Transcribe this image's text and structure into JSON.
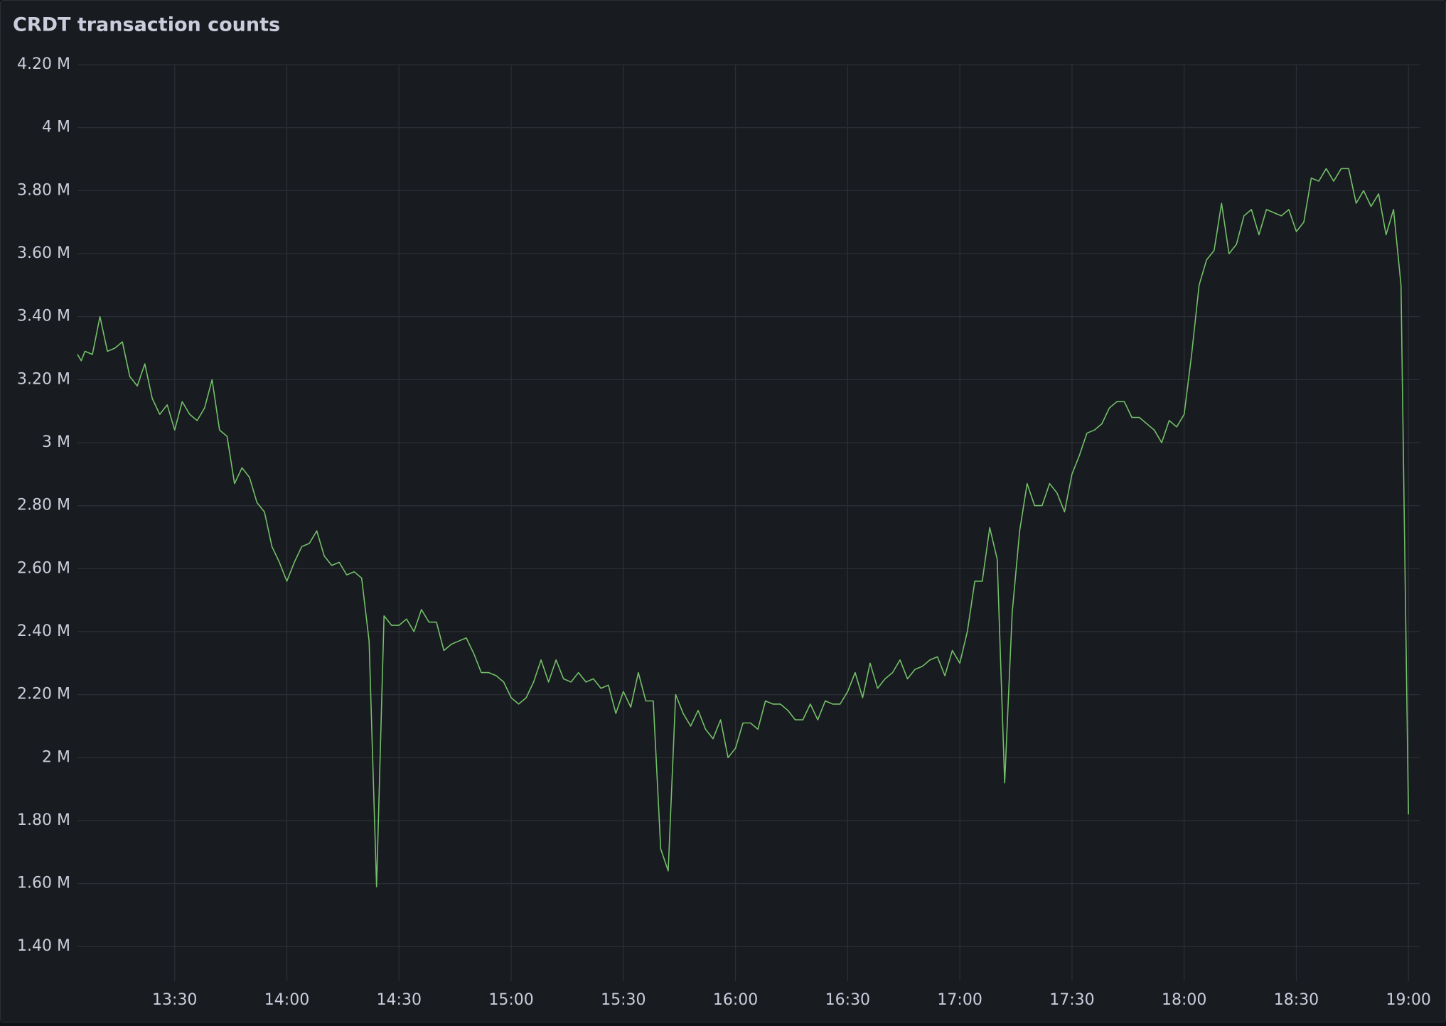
{
  "chart_data": {
    "type": "line",
    "title": "CRDT transaction counts",
    "x": [
      "13:04",
      "13:05",
      "13:06",
      "13:08",
      "13:10",
      "13:12",
      "13:14",
      "13:16",
      "13:18",
      "13:20",
      "13:22",
      "13:24",
      "13:26",
      "13:28",
      "13:30",
      "13:32",
      "13:34",
      "13:36",
      "13:38",
      "13:40",
      "13:42",
      "13:44",
      "13:46",
      "13:48",
      "13:50",
      "13:52",
      "13:54",
      "13:56",
      "13:58",
      "14:00",
      "14:02",
      "14:04",
      "14:06",
      "14:08",
      "14:10",
      "14:12",
      "14:14",
      "14:16",
      "14:18",
      "14:20",
      "14:22",
      "14:24",
      "14:26",
      "14:28",
      "14:30",
      "14:32",
      "14:34",
      "14:36",
      "14:38",
      "14:40",
      "14:42",
      "14:44",
      "14:46",
      "14:48",
      "14:50",
      "14:52",
      "14:54",
      "14:56",
      "14:58",
      "15:00",
      "15:02",
      "15:04",
      "15:06",
      "15:08",
      "15:10",
      "15:12",
      "15:14",
      "15:16",
      "15:18",
      "15:20",
      "15:22",
      "15:24",
      "15:26",
      "15:28",
      "15:30",
      "15:32",
      "15:34",
      "15:36",
      "15:38",
      "15:40",
      "15:42",
      "15:44",
      "15:46",
      "15:48",
      "15:50",
      "15:52",
      "15:54",
      "15:56",
      "15:58",
      "16:00",
      "16:02",
      "16:04",
      "16:06",
      "16:08",
      "16:10",
      "16:12",
      "16:14",
      "16:16",
      "16:18",
      "16:20",
      "16:22",
      "16:24",
      "16:26",
      "16:28",
      "16:30",
      "16:32",
      "16:34",
      "16:36",
      "16:38",
      "16:40",
      "16:42",
      "16:44",
      "16:46",
      "16:48",
      "16:50",
      "16:52",
      "16:54",
      "16:56",
      "16:58",
      "17:00",
      "17:02",
      "17:04",
      "17:06",
      "17:08",
      "17:10",
      "17:12",
      "17:14",
      "17:16",
      "17:18",
      "17:20",
      "17:22",
      "17:24",
      "17:26",
      "17:28",
      "17:30",
      "17:32",
      "17:34",
      "17:36",
      "17:38",
      "17:40",
      "17:42",
      "17:44",
      "17:46",
      "17:48",
      "17:50",
      "17:52",
      "17:54",
      "17:56",
      "17:58",
      "18:00",
      "18:02",
      "18:04",
      "18:06",
      "18:08",
      "18:10",
      "18:12",
      "18:14",
      "18:16",
      "18:18",
      "18:20",
      "18:22",
      "18:24",
      "18:26",
      "18:28",
      "18:30",
      "18:32",
      "18:34",
      "18:36",
      "18:38",
      "18:40",
      "18:42",
      "18:44",
      "18:46",
      "18:48",
      "18:50",
      "18:52",
      "18:54",
      "18:56",
      "18:58",
      "19:00"
    ],
    "series": [
      {
        "name": "CRDT transaction counts",
        "color": "#73bf69",
        "values": [
          3280000,
          3260000,
          3290000,
          3280000,
          3400000,
          3290000,
          3300000,
          3320000,
          3210000,
          3180000,
          3250000,
          3140000,
          3090000,
          3120000,
          3040000,
          3130000,
          3090000,
          3070000,
          3110000,
          3200000,
          3040000,
          3020000,
          2870000,
          2920000,
          2890000,
          2810000,
          2780000,
          2670000,
          2620000,
          2560000,
          2620000,
          2670000,
          2680000,
          2720000,
          2640000,
          2610000,
          2620000,
          2580000,
          2590000,
          2570000,
          2370000,
          1590000,
          2450000,
          2420000,
          2420000,
          2440000,
          2400000,
          2470000,
          2430000,
          2430000,
          2340000,
          2360000,
          2370000,
          2380000,
          2330000,
          2270000,
          2270000,
          2260000,
          2240000,
          2190000,
          2170000,
          2190000,
          2240000,
          2310000,
          2240000,
          2310000,
          2250000,
          2240000,
          2270000,
          2240000,
          2250000,
          2220000,
          2230000,
          2140000,
          2210000,
          2160000,
          2270000,
          2180000,
          2180000,
          1710000,
          1640000,
          2200000,
          2140000,
          2100000,
          2150000,
          2090000,
          2060000,
          2120000,
          2000000,
          2030000,
          2110000,
          2110000,
          2090000,
          2180000,
          2170000,
          2170000,
          2150000,
          2120000,
          2120000,
          2170000,
          2120000,
          2180000,
          2170000,
          2170000,
          2210000,
          2270000,
          2190000,
          2300000,
          2220000,
          2250000,
          2270000,
          2310000,
          2250000,
          2280000,
          2290000,
          2310000,
          2320000,
          2260000,
          2340000,
          2300000,
          2400000,
          2560000,
          2560000,
          2730000,
          2630000,
          1920000,
          2460000,
          2720000,
          2870000,
          2800000,
          2800000,
          2870000,
          2840000,
          2780000,
          2900000,
          2960000,
          3030000,
          3040000,
          3060000,
          3110000,
          3130000,
          3130000,
          3080000,
          3080000,
          3060000,
          3040000,
          3000000,
          3070000,
          3050000,
          3090000,
          3280000,
          3500000,
          3580000,
          3610000,
          3760000,
          3600000,
          3630000,
          3720000,
          3740000,
          3660000,
          3740000,
          3730000,
          3720000,
          3740000,
          3670000,
          3700000,
          3840000,
          3830000,
          3870000,
          3830000,
          3870000,
          3870000,
          3760000,
          3800000,
          3750000,
          3790000,
          3660000,
          3740000,
          3500000,
          1820000
        ]
      }
    ],
    "xlim": [
      "13:04",
      "19:03"
    ],
    "xticks": [
      "13:30",
      "14:00",
      "14:30",
      "15:00",
      "15:30",
      "16:00",
      "16:30",
      "17:00",
      "17:30",
      "18:00",
      "18:30",
      "19:00"
    ],
    "ylim": [
      1290000,
      4200000
    ],
    "yticks": [
      {
        "value": 1400000,
        "label": "1.40 M"
      },
      {
        "value": 1600000,
        "label": "1.60 M"
      },
      {
        "value": 1800000,
        "label": "1.80 M"
      },
      {
        "value": 2000000,
        "label": "2 M"
      },
      {
        "value": 2200000,
        "label": "2.20 M"
      },
      {
        "value": 2400000,
        "label": "2.40 M"
      },
      {
        "value": 2600000,
        "label": "2.60 M"
      },
      {
        "value": 2800000,
        "label": "2.80 M"
      },
      {
        "value": 3000000,
        "label": "3 M"
      },
      {
        "value": 3200000,
        "label": "3.20 M"
      },
      {
        "value": 3400000,
        "label": "3.40 M"
      },
      {
        "value": 3600000,
        "label": "3.60 M"
      },
      {
        "value": 3800000,
        "label": "3.80 M"
      },
      {
        "value": 4000000,
        "label": "4 M"
      },
      {
        "value": 4200000,
        "label": "4.20 M"
      }
    ],
    "grid": true
  }
}
